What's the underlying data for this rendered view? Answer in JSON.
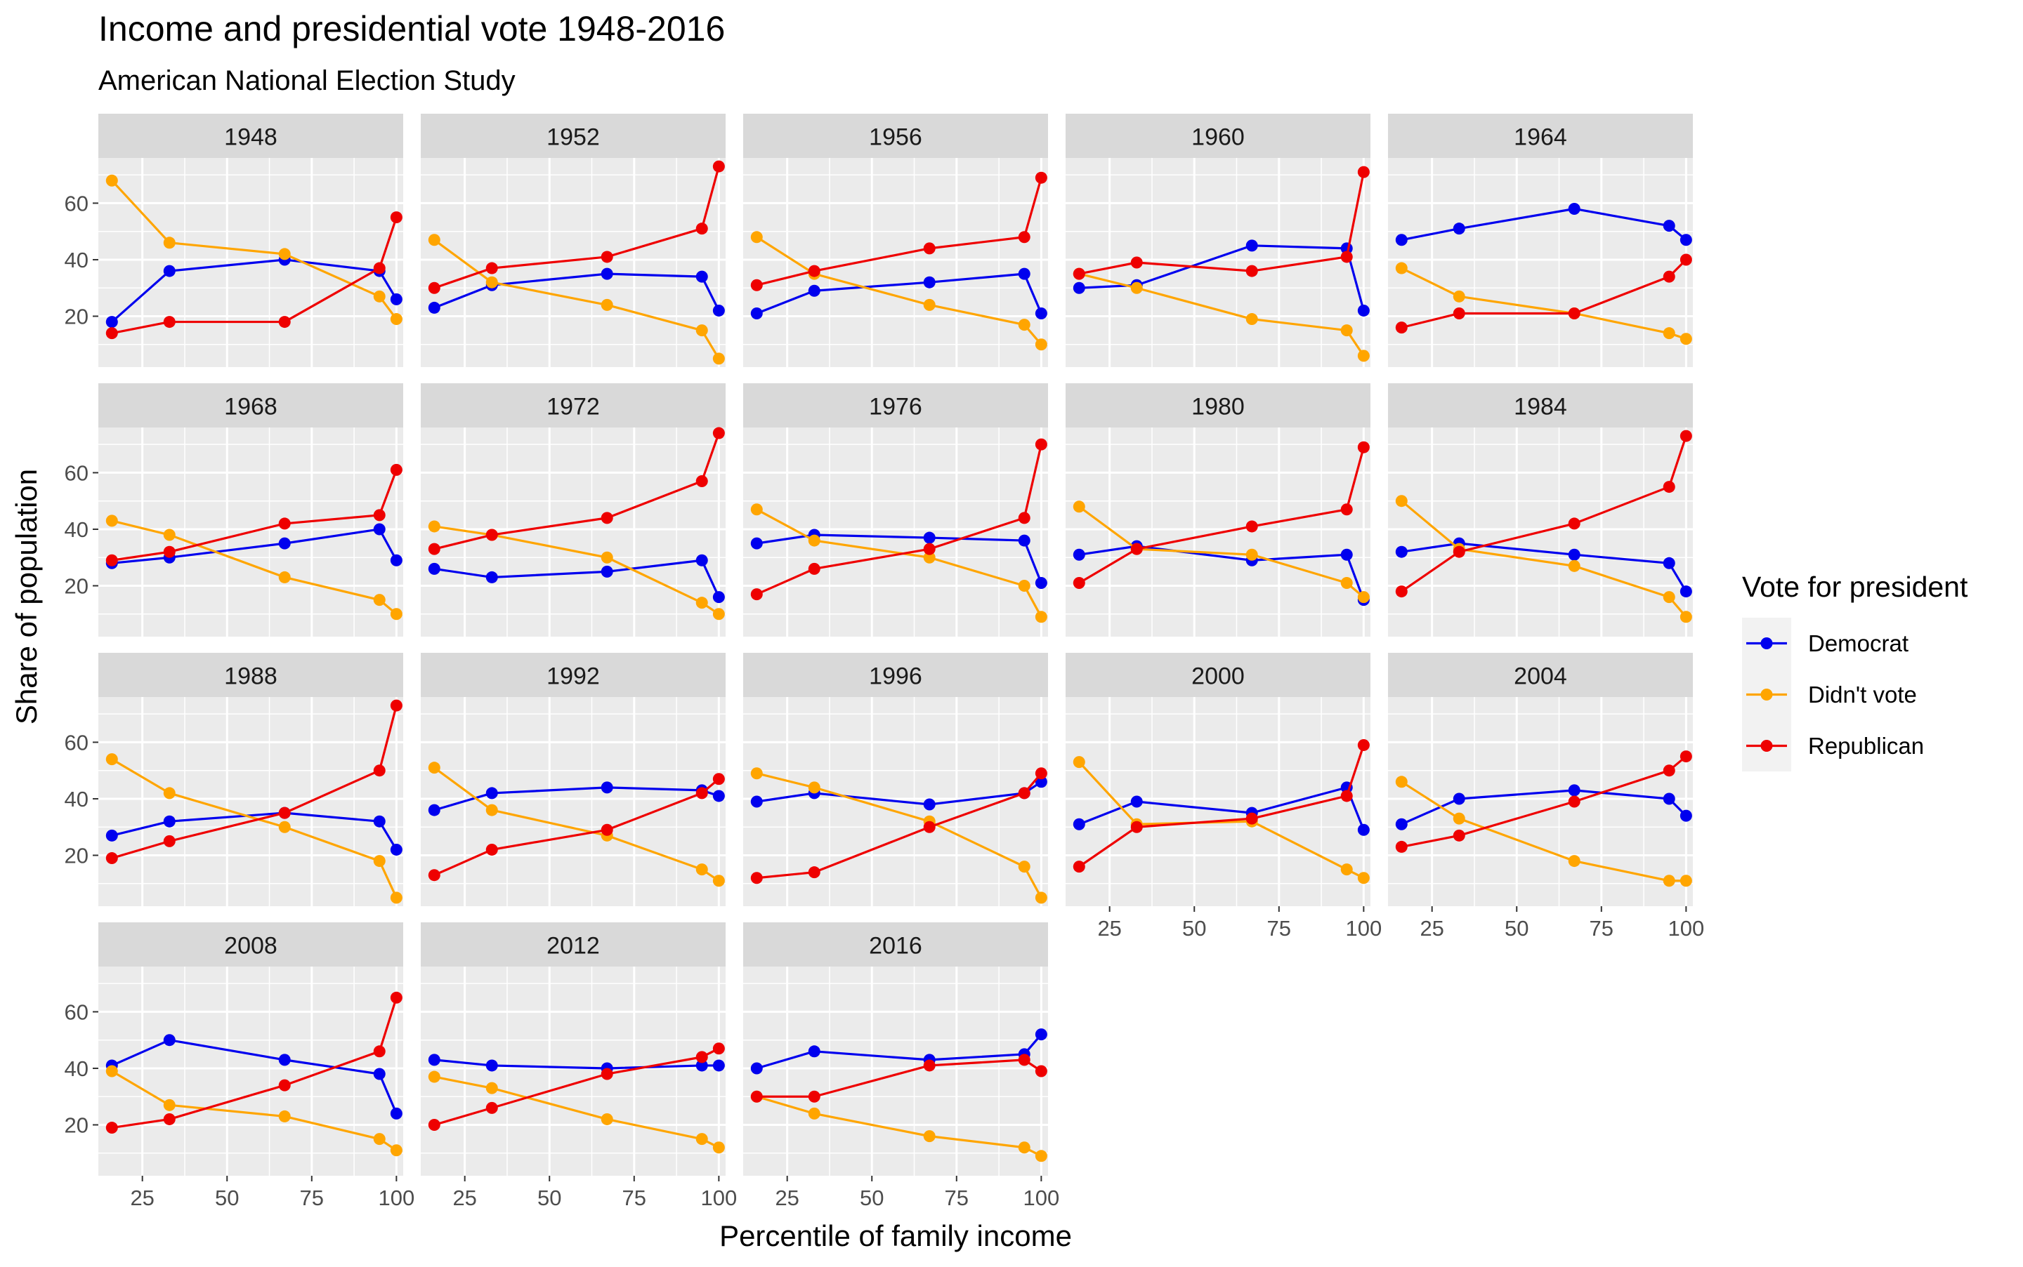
{
  "chart_data": {
    "type": "line",
    "title": "Income and presidential vote 1948-2016",
    "subtitle": "American National Election Study",
    "xlabel": "Percentile of family income",
    "ylabel": "Share of population",
    "x": [
      16,
      33,
      67,
      95,
      100
    ],
    "xlim": [
      12,
      102
    ],
    "ylim": [
      2,
      76
    ],
    "x_ticks": [
      25,
      50,
      75,
      100
    ],
    "y_ticks": [
      20,
      40,
      60
    ],
    "grid": true,
    "legend": {
      "title": "Vote for president",
      "position": "right",
      "entries": [
        "Democrat",
        "Didn't vote",
        "Republican"
      ]
    },
    "series_colors": {
      "Democrat": "#0000ee",
      "Didn't vote": "#ffa500",
      "Republican": "#ee0000"
    },
    "panels": [
      {
        "label": "1948",
        "series": [
          {
            "name": "Democrat",
            "values": [
              18,
              36,
              40,
              36,
              26
            ]
          },
          {
            "name": "Didn't vote",
            "values": [
              68,
              46,
              42,
              27,
              19
            ]
          },
          {
            "name": "Republican",
            "values": [
              14,
              18,
              18,
              37,
              55
            ]
          }
        ]
      },
      {
        "label": "1952",
        "series": [
          {
            "name": "Democrat",
            "values": [
              23,
              31,
              35,
              34,
              22
            ]
          },
          {
            "name": "Didn't vote",
            "values": [
              47,
              32,
              24,
              15,
              5
            ]
          },
          {
            "name": "Republican",
            "values": [
              30,
              37,
              41,
              51,
              73
            ]
          }
        ]
      },
      {
        "label": "1956",
        "series": [
          {
            "name": "Democrat",
            "values": [
              21,
              29,
              32,
              35,
              21
            ]
          },
          {
            "name": "Didn't vote",
            "values": [
              48,
              35,
              24,
              17,
              10
            ]
          },
          {
            "name": "Republican",
            "values": [
              31,
              36,
              44,
              48,
              69
            ]
          }
        ]
      },
      {
        "label": "1960",
        "series": [
          {
            "name": "Democrat",
            "values": [
              30,
              31,
              45,
              44,
              22
            ]
          },
          {
            "name": "Didn't vote",
            "values": [
              35,
              30,
              19,
              15,
              6
            ]
          },
          {
            "name": "Republican",
            "values": [
              35,
              39,
              36,
              41,
              71
            ]
          }
        ]
      },
      {
        "label": "1964",
        "series": [
          {
            "name": "Democrat",
            "values": [
              47,
              51,
              58,
              52,
              47
            ]
          },
          {
            "name": "Didn't vote",
            "values": [
              37,
              27,
              21,
              14,
              12
            ]
          },
          {
            "name": "Republican",
            "values": [
              16,
              21,
              21,
              34,
              40
            ]
          }
        ]
      },
      {
        "label": "1968",
        "series": [
          {
            "name": "Democrat",
            "values": [
              28,
              30,
              35,
              40,
              29
            ]
          },
          {
            "name": "Didn't vote",
            "values": [
              43,
              38,
              23,
              15,
              10
            ]
          },
          {
            "name": "Republican",
            "values": [
              29,
              32,
              42,
              45,
              61
            ]
          }
        ]
      },
      {
        "label": "1972",
        "series": [
          {
            "name": "Democrat",
            "values": [
              26,
              23,
              25,
              29,
              16
            ]
          },
          {
            "name": "Didn't vote",
            "values": [
              41,
              38,
              30,
              14,
              10
            ]
          },
          {
            "name": "Republican",
            "values": [
              33,
              38,
              44,
              57,
              74
            ]
          }
        ]
      },
      {
        "label": "1976",
        "series": [
          {
            "name": "Democrat",
            "values": [
              35,
              38,
              37,
              36,
              21
            ]
          },
          {
            "name": "Didn't vote",
            "values": [
              47,
              36,
              30,
              20,
              9
            ]
          },
          {
            "name": "Republican",
            "values": [
              17,
              26,
              33,
              44,
              70
            ]
          }
        ]
      },
      {
        "label": "1980",
        "series": [
          {
            "name": "Democrat",
            "values": [
              31,
              34,
              29,
              31,
              15
            ]
          },
          {
            "name": "Didn't vote",
            "values": [
              48,
              33,
              31,
              21,
              16
            ]
          },
          {
            "name": "Republican",
            "values": [
              21,
              33,
              41,
              47,
              69
            ]
          }
        ]
      },
      {
        "label": "1984",
        "series": [
          {
            "name": "Democrat",
            "values": [
              32,
              35,
              31,
              28,
              18
            ]
          },
          {
            "name": "Didn't vote",
            "values": [
              50,
              33,
              27,
              16,
              9
            ]
          },
          {
            "name": "Republican",
            "values": [
              18,
              32,
              42,
              55,
              73
            ]
          }
        ]
      },
      {
        "label": "1988",
        "series": [
          {
            "name": "Democrat",
            "values": [
              27,
              32,
              35,
              32,
              22
            ]
          },
          {
            "name": "Didn't vote",
            "values": [
              54,
              42,
              30,
              18,
              5
            ]
          },
          {
            "name": "Republican",
            "values": [
              19,
              25,
              35,
              50,
              73
            ]
          }
        ]
      },
      {
        "label": "1992",
        "series": [
          {
            "name": "Democrat",
            "values": [
              36,
              42,
              44,
              43,
              41
            ]
          },
          {
            "name": "Didn't vote",
            "values": [
              51,
              36,
              27,
              15,
              11
            ]
          },
          {
            "name": "Republican",
            "values": [
              13,
              22,
              29,
              42,
              47
            ]
          }
        ]
      },
      {
        "label": "1996",
        "series": [
          {
            "name": "Democrat",
            "values": [
              39,
              42,
              38,
              42,
              46
            ]
          },
          {
            "name": "Didn't vote",
            "values": [
              49,
              44,
              32,
              16,
              5
            ]
          },
          {
            "name": "Republican",
            "values": [
              12,
              14,
              30,
              42,
              49
            ]
          }
        ]
      },
      {
        "label": "2000",
        "series": [
          {
            "name": "Democrat",
            "values": [
              31,
              39,
              35,
              44,
              29
            ]
          },
          {
            "name": "Didn't vote",
            "values": [
              53,
              31,
              32,
              15,
              12
            ]
          },
          {
            "name": "Republican",
            "values": [
              16,
              30,
              33,
              41,
              59
            ]
          }
        ]
      },
      {
        "label": "2004",
        "series": [
          {
            "name": "Democrat",
            "values": [
              31,
              40,
              43,
              40,
              34
            ]
          },
          {
            "name": "Didn't vote",
            "values": [
              46,
              33,
              18,
              11,
              11
            ]
          },
          {
            "name": "Republican",
            "values": [
              23,
              27,
              39,
              50,
              55
            ]
          }
        ]
      },
      {
        "label": "2008",
        "series": [
          {
            "name": "Democrat",
            "values": [
              41,
              50,
              43,
              38,
              24
            ]
          },
          {
            "name": "Didn't vote",
            "values": [
              39,
              27,
              23,
              15,
              11
            ]
          },
          {
            "name": "Republican",
            "values": [
              19,
              22,
              34,
              46,
              65
            ]
          }
        ]
      },
      {
        "label": "2012",
        "series": [
          {
            "name": "Democrat",
            "values": [
              43,
              41,
              40,
              41,
              41
            ]
          },
          {
            "name": "Didn't vote",
            "values": [
              37,
              33,
              22,
              15,
              12
            ]
          },
          {
            "name": "Republican",
            "values": [
              20,
              26,
              38,
              44,
              47
            ]
          }
        ]
      },
      {
        "label": "2016",
        "series": [
          {
            "name": "Democrat",
            "values": [
              40,
              46,
              43,
              45,
              52
            ]
          },
          {
            "name": "Didn't vote",
            "values": [
              30,
              24,
              16,
              12,
              9
            ]
          },
          {
            "name": "Republican",
            "values": [
              30,
              30,
              41,
              43,
              39
            ]
          }
        ]
      }
    ]
  }
}
